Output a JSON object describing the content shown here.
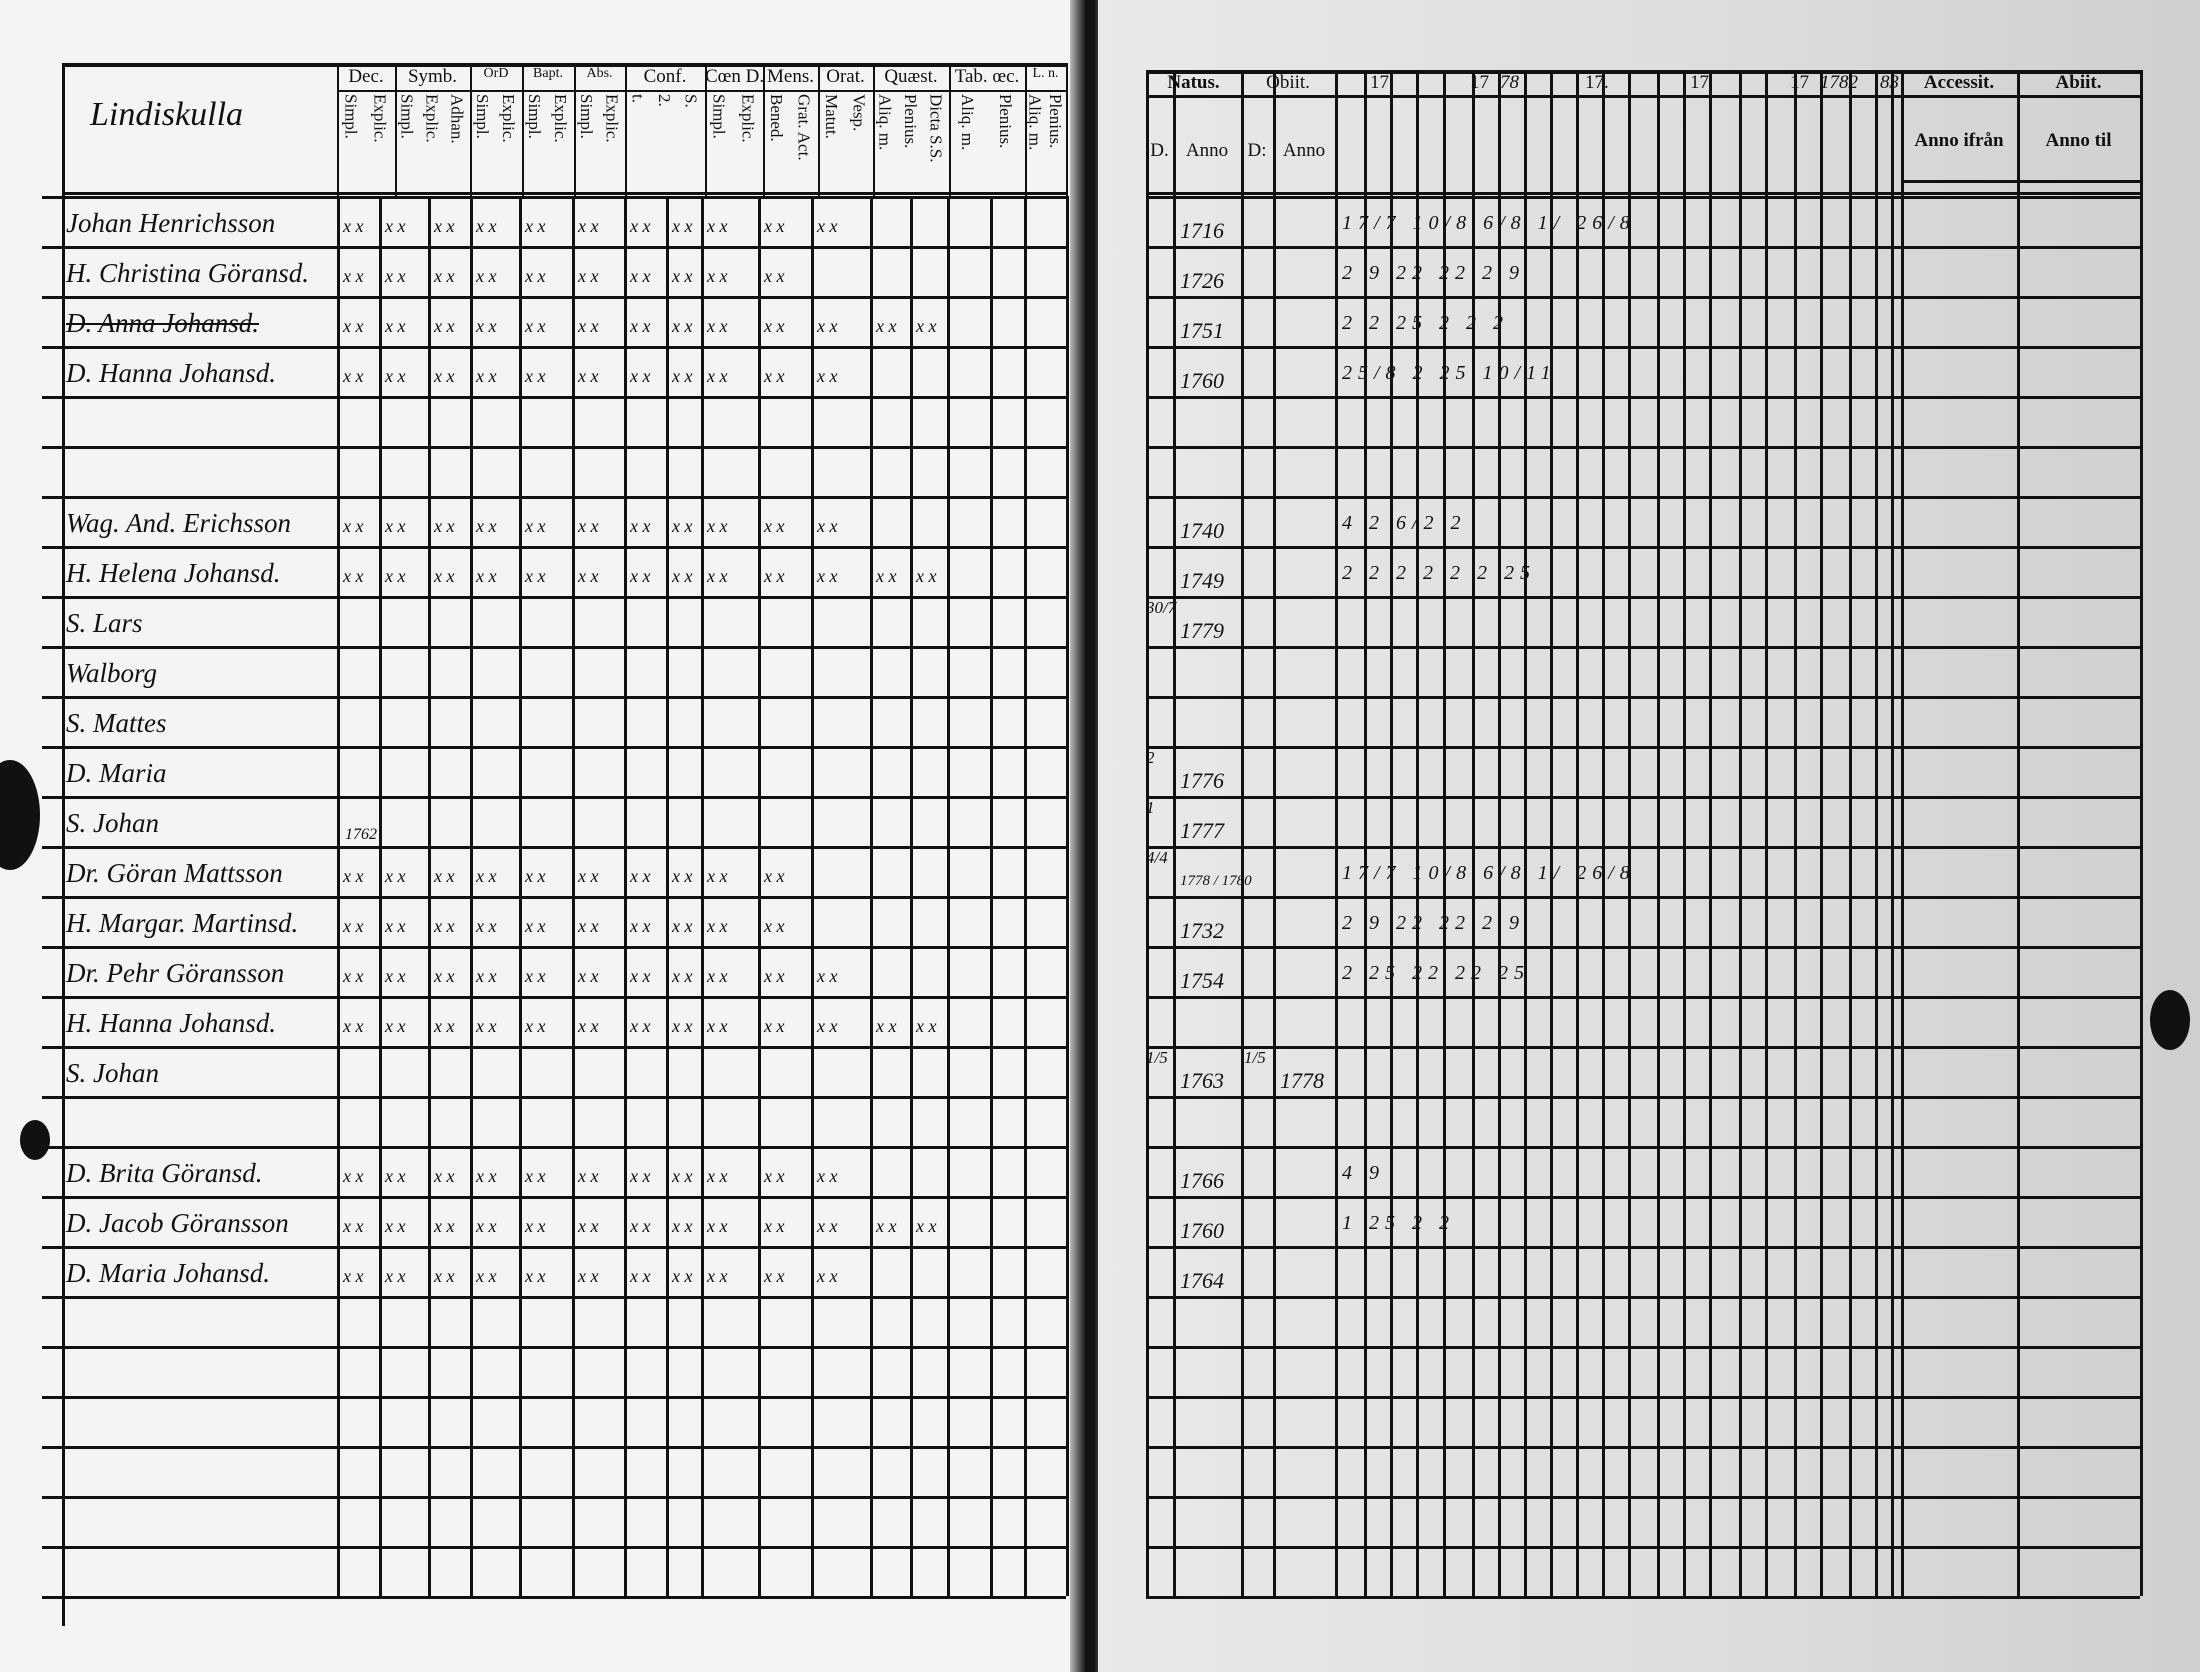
{
  "left_page": {
    "title": "Lindiskulla",
    "header_groups": [
      {
        "label": "Dec.",
        "sub": [
          "Simpl.",
          "Explic."
        ]
      },
      {
        "label": "Symb.",
        "sub": [
          "Simpl.",
          "Explic.",
          "Adhan."
        ]
      },
      {
        "label": "OrD",
        "sub": [
          "Simpl.",
          "Explic."
        ]
      },
      {
        "label": "Bapt.",
        "sub": [
          "Simpl.",
          "Explic."
        ]
      },
      {
        "label": "Abs.",
        "sub": [
          "Simpl.",
          "Explic."
        ]
      },
      {
        "label": "Conf.",
        "sub": [
          "t.",
          "2.",
          "S."
        ]
      },
      {
        "label": "Cœn D.",
        "sub": [
          "Simpl.",
          "Explic."
        ]
      },
      {
        "label": "Mens.",
        "sub": [
          "Bened.",
          "Grat. Act."
        ]
      },
      {
        "label": "Orat.",
        "sub": [
          "Matut.",
          "Vesp."
        ]
      },
      {
        "label": "Quæst.",
        "sub": [
          "Aliq. m.",
          "Plenius.",
          "Dicta S.S."
        ]
      },
      {
        "label": "Tab. œc.",
        "sub": [
          "Aliq. m.",
          "Plenius."
        ]
      },
      {
        "label": "L. n.",
        "sub": [
          "Aliq. m.",
          "Plenius."
        ]
      }
    ],
    "rows": [
      {
        "name": "Johan Henrichsson",
        "marks": 11
      },
      {
        "name": "H. Christina Göransd.",
        "marks": 10
      },
      {
        "name": "D. Anna Johansd.",
        "struck": true,
        "marks": 13
      },
      {
        "name": "D. Hanna Johansd.",
        "marks": 11
      },
      {
        "name": "",
        "marks": 0
      },
      {
        "name": "",
        "marks": 0
      },
      {
        "name": "Wag. And. Erichsson",
        "marks": 11
      },
      {
        "name": "H. Helena Johansd.",
        "marks": 13
      },
      {
        "name": "S. Lars",
        "marks": 0
      },
      {
        "name": "Walborg",
        "marks": 0
      },
      {
        "name": "S. Mattes",
        "marks": 0
      },
      {
        "name": "D. Maria",
        "marks": 0
      },
      {
        "name": "S. Johan",
        "note": "1762",
        "marks": 0
      },
      {
        "name": "Dr. Göran Mattsson",
        "marks": 10
      },
      {
        "name": "H. Margar. Martinsd.",
        "marks": 10
      },
      {
        "name": "Dr. Pehr Göransson",
        "marks": 11
      },
      {
        "name": "H. Hanna Johansd.",
        "marks": 13
      },
      {
        "name": "S. Johan",
        "marks": 0
      },
      {
        "name": "",
        "marks": 0
      },
      {
        "name": "D. Brita Göransd.",
        "marks": 11
      },
      {
        "name": "D. Jacob Göransson",
        "marks": 13
      },
      {
        "name": "D. Maria Johansd.",
        "marks": 11
      }
    ],
    "mark_glyph": "x x"
  },
  "right_page": {
    "natus": {
      "label": "Natus.",
      "day": "D.",
      "year": "Anno"
    },
    "obiit": {
      "label": "Obiit.",
      "day": "D:",
      "year": "Anno"
    },
    "year_headers": [
      "17",
      "17",
      "78",
      "17.",
      "17",
      "17",
      "1782",
      "83"
    ],
    "accessit": {
      "label": "Accessit.",
      "sub": "Anno ifrån"
    },
    "abiit": {
      "label": "Abiit.",
      "sub": "Anno til"
    },
    "rows": [
      {
        "birth_day": "",
        "birth_year": "1716",
        "exam": "17/7  10/8 6/8 1/ 26/8"
      },
      {
        "birth_day": "",
        "birth_year": "1726",
        "exam": "2 9   22 22 2 9"
      },
      {
        "birth_day": "",
        "birth_year": "1751",
        "exam": "2 2   25 2 2 2"
      },
      {
        "birth_day": "",
        "birth_year": "1760",
        "exam": "25/8   2  25  10/11"
      },
      {
        "birth_day": "",
        "birth_year": ""
      },
      {
        "birth_day": "",
        "birth_year": ""
      },
      {
        "birth_day": "",
        "birth_year": "1740",
        "exam": "4 2  6/2 2"
      },
      {
        "birth_day": "",
        "birth_year": "1749",
        "exam": "2 2 2  2  2 2 25"
      },
      {
        "birth_day": "30/7",
        "birth_year": "1779"
      },
      {
        "birth_day": "",
        "birth_year": ""
      },
      {
        "birth_day": "",
        "birth_year": ""
      },
      {
        "birth_day": "2",
        "birth_year": "1776"
      },
      {
        "birth_day": "1",
        "birth_year": "1777"
      },
      {
        "birth_day": "4/4",
        "birth_year": "1778 / 1780",
        "exam": "17/7  10/8  6/8 1/ 26/8"
      },
      {
        "birth_day": "",
        "birth_year": "1732",
        "exam": "2 9   22 22 2 9"
      },
      {
        "birth_day": "",
        "birth_year": "1754",
        "exam": "2 25   22 22 25"
      },
      {
        "birth_day": "",
        "birth_year": ""
      },
      {
        "birth_day": "1/5",
        "birth_year": "1763",
        "death_day": "1/5",
        "death_year": "1778"
      },
      {
        "birth_day": "",
        "birth_year": ""
      },
      {
        "birth_day": "",
        "birth_year": "1766",
        "exam": "4 9"
      },
      {
        "birth_day": "",
        "birth_year": "1760",
        "exam": "1 25  2 2"
      },
      {
        "birth_day": "",
        "birth_year": "1764"
      }
    ]
  }
}
